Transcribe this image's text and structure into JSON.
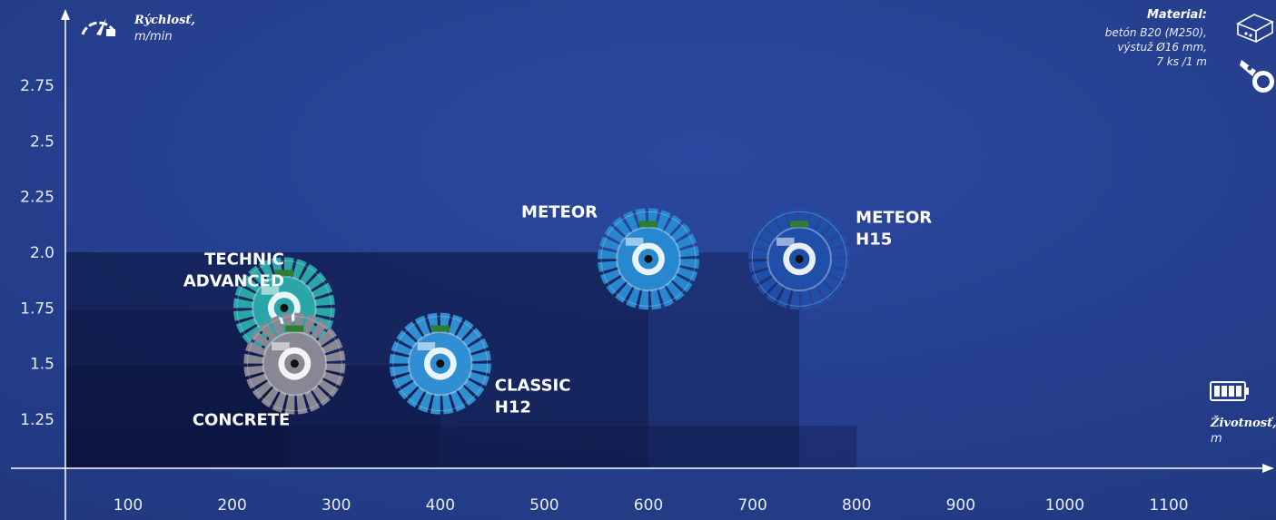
{
  "chart_data": {
    "type": "scatter",
    "y_axis": {
      "title": "Rýchlosť",
      "unit": "m/min",
      "ticks": [
        "1.25",
        "1.5",
        "1.75",
        "2.0",
        "2.25",
        "2.5",
        "2.75"
      ],
      "ylim": [
        1.1,
        2.9
      ]
    },
    "x_axis": {
      "title": "Životnosť",
      "unit": "m",
      "ticks": [
        "100",
        "200",
        "300",
        "400",
        "500",
        "600",
        "700",
        "800",
        "900",
        "1000",
        "1100"
      ],
      "xlim": [
        40,
        1150
      ]
    },
    "points": [
      {
        "name_lines": [
          "CONCRETE"
        ],
        "x": 260,
        "y": 1.5,
        "rect_x": 255,
        "rect_y": 1.49,
        "color": "#8a8794",
        "label_pos": "bottom-left"
      },
      {
        "name_lines": [
          "TECHNIC",
          "ADVANCED"
        ],
        "x": 250,
        "y": 1.75,
        "rect_x": 250,
        "rect_y": 1.74,
        "color": "#2aa5a8",
        "label_pos": "top-left"
      },
      {
        "name_lines": [
          "CLASSIC",
          "H12"
        ],
        "x": 400,
        "y": 1.5,
        "rect_x": 400,
        "rect_y": 1.49,
        "color": "#2f8fd2",
        "label_pos": "right"
      },
      {
        "name_lines": [
          "METEOR"
        ],
        "x": 600,
        "y": 1.97,
        "rect_x": 600,
        "rect_y": 2.0,
        "color": "#2788cf",
        "label_pos": "top-left"
      },
      {
        "name_lines": [
          "METEOR",
          "H15"
        ],
        "x": 745,
        "y": 1.97,
        "rect_x": 745,
        "rect_y": 2.0,
        "color": "#1f4fa8",
        "label_pos": "top-right"
      }
    ],
    "region_800": {
      "x": 800,
      "y": 1.22
    },
    "material": {
      "title": "Material:",
      "lines": [
        "betón B20 (M250),",
        "výstuž Ø16 mm,",
        "7 ks /1 m"
      ]
    }
  },
  "colors": {
    "background": "#263f8c",
    "axis": "#ffffff",
    "region_dark": "#0d1540"
  },
  "icons": {
    "speed": "speedometer-icon",
    "life": "battery-icon",
    "material": "concrete-block-icon",
    "tool": "cutting-machine-icon"
  }
}
